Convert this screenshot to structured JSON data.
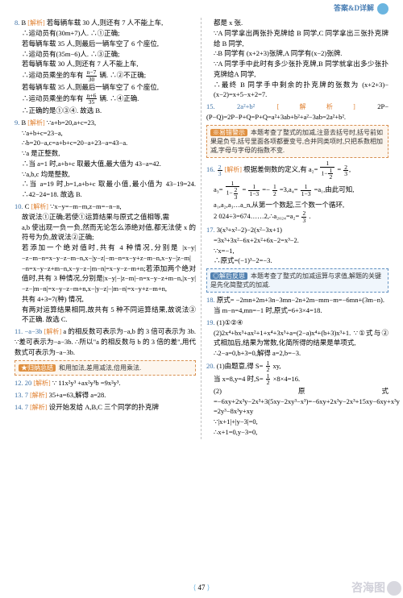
{
  "header": {
    "title": "答案&D详解"
  },
  "pageNumber": "47",
  "watermark": "咨海图",
  "left": {
    "q8": {
      "num": "8.",
      "ans": "B",
      "label": "[解析]",
      "l1": "若每辆车载 30 人,则还有 7 人不能上车,",
      "l2": "∴运动员有(30m+7)人. ∴①正确;",
      "l3": "若每辆车载 35 人,则最后一辆车空了 6 个座位,",
      "l4": "∴运动员有(35m−6)人. ∴③正确;",
      "l5a": "若每辆车载 30 人,则还有 7 人不能上车,",
      "l5b": "∴运动员乘坐的车有",
      "l5c": "辆. ∴②不正确;",
      "l6": "若每辆车载 35 人,则最后一辆车空了 6 个座位,",
      "l7a": "∴运动员乘坐的车有",
      "l7b": "辆. ∴④正确.",
      "l8": "∴正确的是①③④. 故选 B."
    },
    "q9": {
      "num": "9.",
      "ans": "B",
      "label": "[解析]",
      "l1": "∵a+b=20,a+c=23,",
      "l2": "∵a+b+c=23−a,",
      "l3": "∴b=20−a,c=a+b+c=20−a+23−a=43−a.",
      "l4": "∵a 是正整数,",
      "l5": "∴当 a=1 时,a+b+c 取最大值,最大值为 43−a=42.",
      "l6": "∵a,b,c 均是整数,",
      "l7": "∴当 a=19 时,b=1,a+b+c 取最小值,最小值为 43−19=24. ∴42−24=18. 故选 B."
    },
    "q10": {
      "num": "10.",
      "ans": "C",
      "label": "[解析]",
      "l1": "∵x−y=−m−m,z−m=−n−n,",
      "l2": "故说法①正确;若使①运算结果与原式之值相等,需",
      "l3": "a,b 使出现一负一负,然而无论怎么添绝对值,都无法使 x 的符号为负,故说法②正确;",
      "l4": "若添加一个绝对值时,共有 4 种情况,分别是 |x−y|−z−m−n=x−y−z−m−n,x−|y−z|−m−n=x−y+z−m−n,x−y−|z−m|−n=x−y−z+m−n,x−y−z−|m−n|=x−y−z−m+n;若添加两个绝对值时,共有 3 种情况,分别是|x−y|−|z−m|−n=x−y−z+m−n,|x−y|−z−|m−n|=x−y−z−m+n,x−|y−z|−|m−n|=x−y+z−m+n,",
      "l5": "共有 4+3=7(种) 情况,",
      "l6": "有两对运算结果相同,故共有 5 种不同运算结果,故说法③不正确. 故选 C."
    },
    "q11": {
      "num": "11.",
      "ans": "−a−3b",
      "label": "[解析]",
      "l1": "a 的相反数可表示为−a,b 的 3 倍可表示为 3b. ∵差可表示为−a−3b. ∴所以\"a 的相反数与 b 的 3 倍的差\",用代数式可表示为−a−3b."
    },
    "tip1": {
      "label": "★归纳总结",
      "text": "和用加法,差用减法,倍用乘法."
    },
    "q12": {
      "num": "12.",
      "ans": "20",
      "label": "[解析]",
      "l1": "∵   11x²y³ +ax²y³b =9x²y³."
    },
    "q13": {
      "num": "13.",
      "ans": "7",
      "label": "[解析]",
      "l1": "35+a=63,解得 a=28."
    },
    "q14": {
      "num": "14.",
      "ans": "7",
      "label": "[解析]",
      "l1": "设开始发给 A,B,C 三个同学的扑克牌"
    }
  },
  "right": {
    "q14cont": {
      "l1": "都是 x 张.",
      "l2": "∵A 同学拿出两张扑克牌给 B 同学,C 同学拿出三张扑克牌给 B 同学,",
      "l3": "∴B 同学有 (x+2+3)张牌,A 同学有(x−2)张牌.",
      "l4": "∵A 同学手中此时有多少张扑克牌,B 同学就拿出多少张扑克牌给A 同学,",
      "l5": "∴最终 B 同学手中剩余的扑克牌的张数为 (x+2+3)−(x−2)=x+5−x+2=7."
    },
    "q15": {
      "num": "15.",
      "ans": "2a²+b²",
      "label": "[解析]",
      "l1": "2P−(P−Q)=2P−P+Q=P+Q=a²+3ab+b²+a²−3ab=2a²+b²."
    },
    "tip2": {
      "label": "※易错警示",
      "text": "本题考查了整式的加减,注意去括号时,括号前如果是负号,括号里面各项都要变号,合并同类项时,只把系数相加减,字母与字母的指数不变."
    },
    "q16": {
      "num": "16.",
      "ansFrac": {
        "num": "2",
        "den": "3"
      },
      "label": "[解析]",
      "l1a": "根据差倒数的定义,有 a₂=",
      "l1b": "=",
      "l2a": "a₃=",
      "l2b": "=",
      "l2c": "=−",
      "l2d": "=3,a₄=",
      "l2e": "=a₁,由此可知,",
      "l3": "a₁,a₂,a₃…a_n,从第一个数起,三个数一个循环,",
      "l4a": "2 024÷3=674……2,∴a₂₀₂₄=a₂=",
      "l4b": "."
    },
    "q17": {
      "num": "17.",
      "l1": "3(x³+x²−2)−2(x²−3x+1)",
      "l2": "=3x³+3x²−6x+2x²+6x−2=x³−2.",
      "l3": "∵x=−1,",
      "l4": "∴原式=(−1)³−2=−3."
    },
    "tip3": {
      "label": "◎解后反思",
      "text": "本题考查了整式的加减运算与求值,解题的关键是先化简整式的加减."
    },
    "q18": {
      "num": "18.",
      "l1": "原式= −2mn+2m+3n−3mn−2n+2m−mm−m=−6mn+(3m−n).",
      "l2": "当 m−n=4,mn=−1 时,原式=6+3×4=18."
    },
    "q19": {
      "num": "19.",
      "l1": "(1)①②④",
      "l2": "(2)2x⁴+bx³+ax²+1+x⁴+3x³+a=(2−a)x⁴+(b+3)x³+1. ∵①式与②式相加后,结果为常数,化简所得的结果是单项式,",
      "l3": "∴2−a=0,b+3=0,解得 a=2,b=−3."
    },
    "q20": {
      "num": "20.",
      "l1a": "(1)由题意,得 S=",
      "l1b": "xy,",
      "l2a": "当 x=8,y=4 时,S=",
      "l2b": "×8×4=16.",
      "l3": "(2)原式=−6xy+2x³y−2x³+3(5xy−2xy³−x³)=−6xy+2x³y−2x³+15xy−6xy+x³y",
      "l4": "=2y³−8x³y+xy",
      "l5": "∵|x+1|+|y−3|=0,",
      "l6": "∴x+1=0,y−3=0,"
    }
  }
}
